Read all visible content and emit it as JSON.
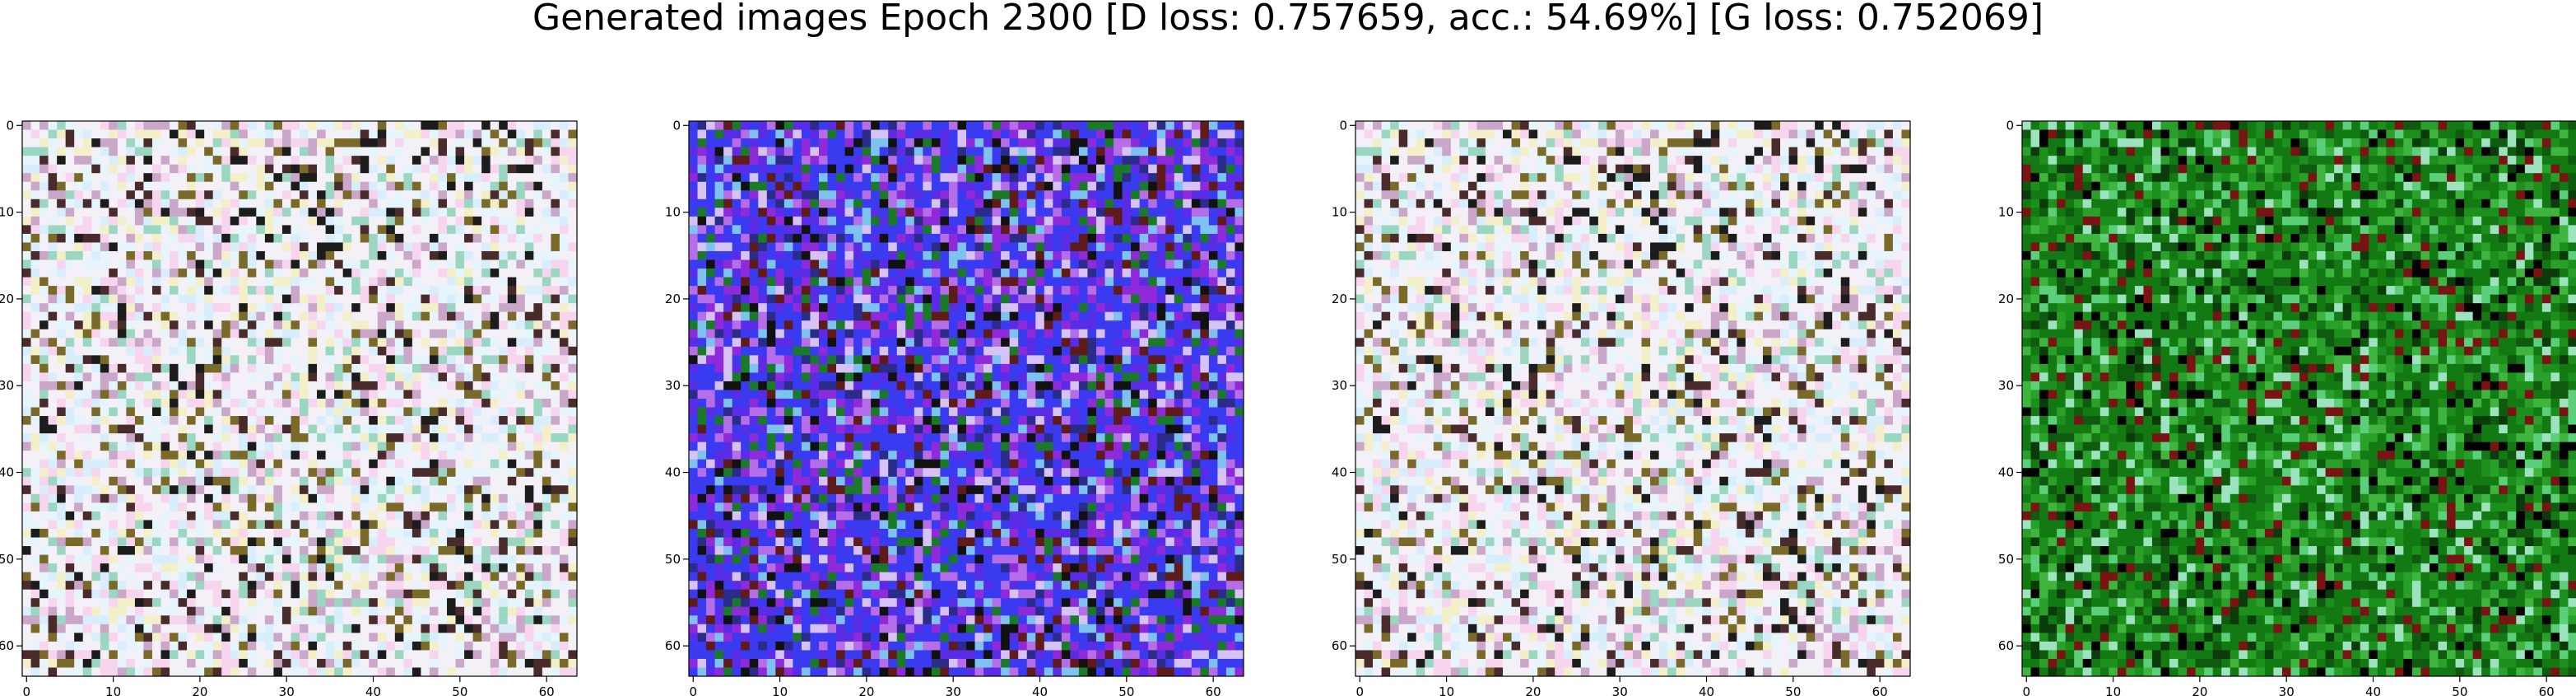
{
  "figure": {
    "title": "Generated images Epoch 2300 [D loss: 0.757659, acc.: 54.69%] [G loss: 0.752069]"
  },
  "axes": {
    "xticks": [
      "0",
      "10",
      "20",
      "30",
      "40",
      "50",
      "60"
    ],
    "yticks": [
      "0",
      "10",
      "20",
      "30",
      "40",
      "50",
      "60"
    ]
  },
  "panels": [
    {
      "name": "generated-image-1",
      "palette": [
        "#f4f0f7",
        "#e6f4fb",
        "#f7d5ee",
        "#d9eefd",
        "#f3efc9",
        "#caa7c9",
        "#9bd6c3",
        "#7a6a2a",
        "#4a2b2b",
        "#1c1c1c"
      ]
    },
    {
      "name": "generated-image-2",
      "palette": [
        "#3a3bf0",
        "#5a2ce6",
        "#8e2ad9",
        "#b56de8",
        "#d6c2f5",
        "#7ec2f2",
        "#2b2b8a",
        "#1a7a2a",
        "#5f1a1a",
        "#111111"
      ]
    },
    {
      "name": "generated-image-3",
      "palette": [
        "#f4f0f7",
        "#e6f4fb",
        "#f7d5ee",
        "#d9eefd",
        "#f3efc9",
        "#caa7c9",
        "#9bd6c3",
        "#7a6a2a",
        "#4a2b2b",
        "#1c1c1c"
      ]
    },
    {
      "name": "generated-image-4",
      "palette": [
        "#137a13",
        "#1d8f1d",
        "#0f5a0f",
        "#2aa02a",
        "#3fb43f",
        "#0b3a0b",
        "#5ccf7a",
        "#9de3c0",
        "#7a1414",
        "#000000"
      ]
    }
  ]
}
